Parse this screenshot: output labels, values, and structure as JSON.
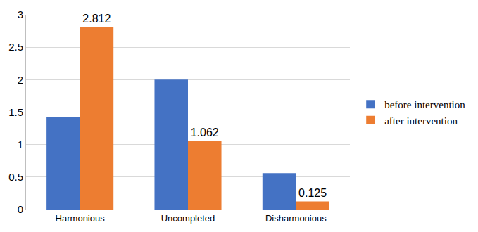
{
  "chart_data": {
    "type": "bar",
    "categories": [
      "Harmonious",
      "Uncompleted",
      "Disharmonious"
    ],
    "series": [
      {
        "name": "before intervention",
        "color": "#4472c4",
        "values": [
          1.43,
          2.0,
          0.56
        ],
        "data_labels": false
      },
      {
        "name": "after intervention",
        "color": "#ed7d31",
        "values": [
          2.812,
          1.062,
          0.125
        ],
        "data_labels": true
      }
    ],
    "ylim": [
      0,
      3
    ],
    "yticks": [
      0,
      0.5,
      1,
      1.5,
      2,
      2.5,
      3
    ],
    "grid": true,
    "legend": "right"
  }
}
